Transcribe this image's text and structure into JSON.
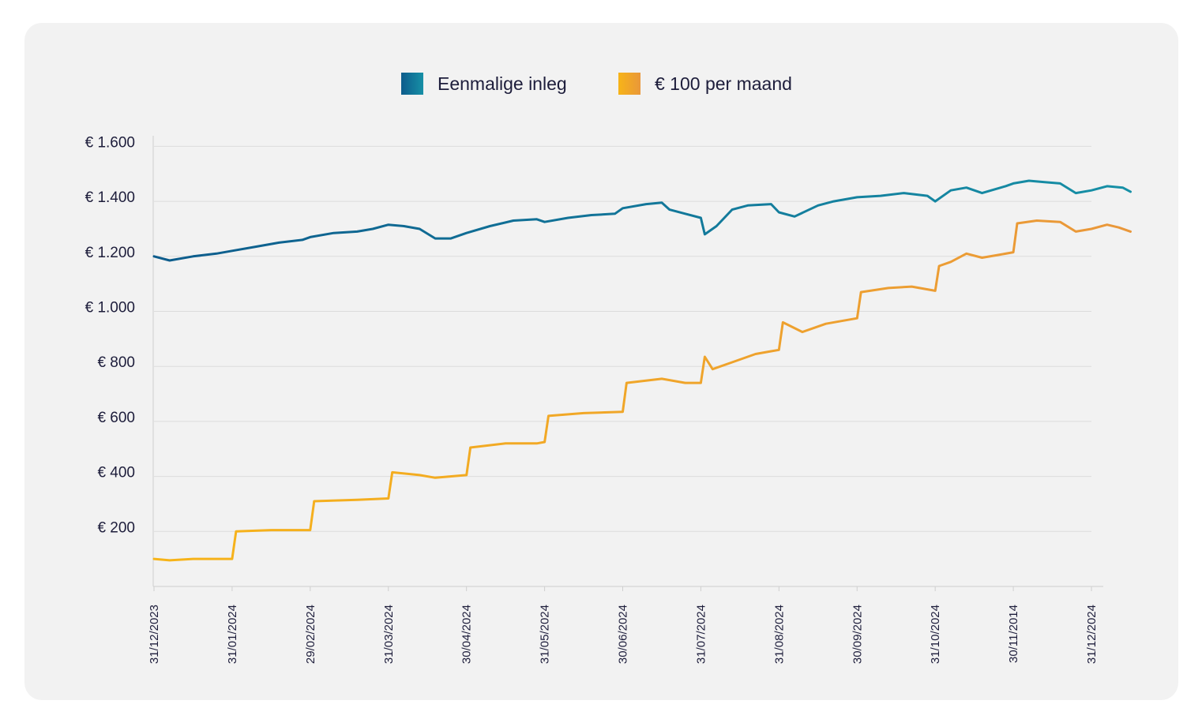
{
  "chart_data": {
    "type": "line",
    "title": "",
    "xlabel": "",
    "ylabel": "",
    "ylim": [
      0,
      1600
    ],
    "y_ticks": [
      200,
      400,
      600,
      800,
      1000,
      1200,
      1400,
      1600
    ],
    "y_tick_labels": [
      "€ 200",
      "€ 400",
      "€ 600",
      "€ 800",
      "€ 1.000",
      "€ 1.200",
      "€ 1.400",
      "€ 1.600"
    ],
    "x_tick_labels": [
      "31/12/2023",
      "31/01/2024",
      "29/02/2024",
      "31/03/2024",
      "30/04/2024",
      "31/05/2024",
      "30/06/2024",
      "31/07/2024",
      "31/08/2024",
      "30/09/2024",
      "31/10/2024",
      "30/11/2014",
      "31/12/2024"
    ],
    "grid": true,
    "legend_position": "top-center",
    "series": [
      {
        "name": "Eenmalige inleg",
        "color": "#0d5c8c",
        "color_end": "#1790a6",
        "points": [
          [
            0,
            1200
          ],
          [
            0.2,
            1185
          ],
          [
            0.5,
            1200
          ],
          [
            0.8,
            1210
          ],
          [
            1.0,
            1220
          ],
          [
            1.3,
            1235
          ],
          [
            1.6,
            1250
          ],
          [
            1.9,
            1260
          ],
          [
            2.0,
            1270
          ],
          [
            2.3,
            1285
          ],
          [
            2.6,
            1290
          ],
          [
            2.8,
            1300
          ],
          [
            3.0,
            1315
          ],
          [
            3.2,
            1310
          ],
          [
            3.4,
            1300
          ],
          [
            3.6,
            1265
          ],
          [
            3.8,
            1265
          ],
          [
            4.0,
            1285
          ],
          [
            4.3,
            1310
          ],
          [
            4.6,
            1330
          ],
          [
            4.9,
            1335
          ],
          [
            5.0,
            1325
          ],
          [
            5.3,
            1340
          ],
          [
            5.6,
            1350
          ],
          [
            5.9,
            1355
          ],
          [
            6.0,
            1375
          ],
          [
            6.3,
            1390
          ],
          [
            6.5,
            1395
          ],
          [
            6.6,
            1370
          ],
          [
            6.8,
            1355
          ],
          [
            7.0,
            1340
          ],
          [
            7.05,
            1280
          ],
          [
            7.2,
            1310
          ],
          [
            7.4,
            1370
          ],
          [
            7.6,
            1385
          ],
          [
            7.9,
            1390
          ],
          [
            8.0,
            1360
          ],
          [
            8.2,
            1345
          ],
          [
            8.5,
            1385
          ],
          [
            8.7,
            1400
          ],
          [
            8.9,
            1410
          ],
          [
            9.0,
            1415
          ],
          [
            9.3,
            1420
          ],
          [
            9.6,
            1430
          ],
          [
            9.9,
            1420
          ],
          [
            10.0,
            1400
          ],
          [
            10.2,
            1440
          ],
          [
            10.4,
            1450
          ],
          [
            10.6,
            1430
          ],
          [
            10.9,
            1455
          ],
          [
            11.0,
            1465
          ],
          [
            11.2,
            1475
          ],
          [
            11.4,
            1470
          ],
          [
            11.6,
            1465
          ],
          [
            11.8,
            1430
          ],
          [
            12.0,
            1440
          ],
          [
            12.2,
            1455
          ],
          [
            12.4,
            1450
          ],
          [
            12.5,
            1435
          ]
        ]
      },
      {
        "name": "€ 100 per maand",
        "color": "#f7b418",
        "color_end": "#e9973a",
        "points": [
          [
            0,
            100
          ],
          [
            0.2,
            95
          ],
          [
            0.5,
            100
          ],
          [
            1.0,
            100
          ],
          [
            1.05,
            200
          ],
          [
            1.5,
            205
          ],
          [
            2.0,
            205
          ],
          [
            2.05,
            310
          ],
          [
            2.6,
            315
          ],
          [
            3.0,
            320
          ],
          [
            3.05,
            415
          ],
          [
            3.4,
            405
          ],
          [
            3.6,
            395
          ],
          [
            4.0,
            405
          ],
          [
            4.05,
            505
          ],
          [
            4.5,
            520
          ],
          [
            4.9,
            520
          ],
          [
            5.0,
            525
          ],
          [
            5.05,
            620
          ],
          [
            5.5,
            630
          ],
          [
            6.0,
            635
          ],
          [
            6.05,
            740
          ],
          [
            6.5,
            755
          ],
          [
            6.8,
            740
          ],
          [
            7.0,
            740
          ],
          [
            7.05,
            835
          ],
          [
            7.15,
            790
          ],
          [
            7.4,
            815
          ],
          [
            7.7,
            845
          ],
          [
            7.9,
            855
          ],
          [
            8.0,
            860
          ],
          [
            8.05,
            960
          ],
          [
            8.3,
            925
          ],
          [
            8.6,
            955
          ],
          [
            9.0,
            975
          ],
          [
            9.05,
            1070
          ],
          [
            9.4,
            1085
          ],
          [
            9.7,
            1090
          ],
          [
            10.0,
            1075
          ],
          [
            10.05,
            1165
          ],
          [
            10.2,
            1180
          ],
          [
            10.4,
            1210
          ],
          [
            10.6,
            1195
          ],
          [
            10.8,
            1205
          ],
          [
            11.0,
            1215
          ],
          [
            11.05,
            1320
          ],
          [
            11.3,
            1330
          ],
          [
            11.6,
            1325
          ],
          [
            11.8,
            1290
          ],
          [
            12.0,
            1300
          ],
          [
            12.2,
            1315
          ],
          [
            12.35,
            1305
          ],
          [
            12.5,
            1290
          ]
        ]
      }
    ]
  }
}
